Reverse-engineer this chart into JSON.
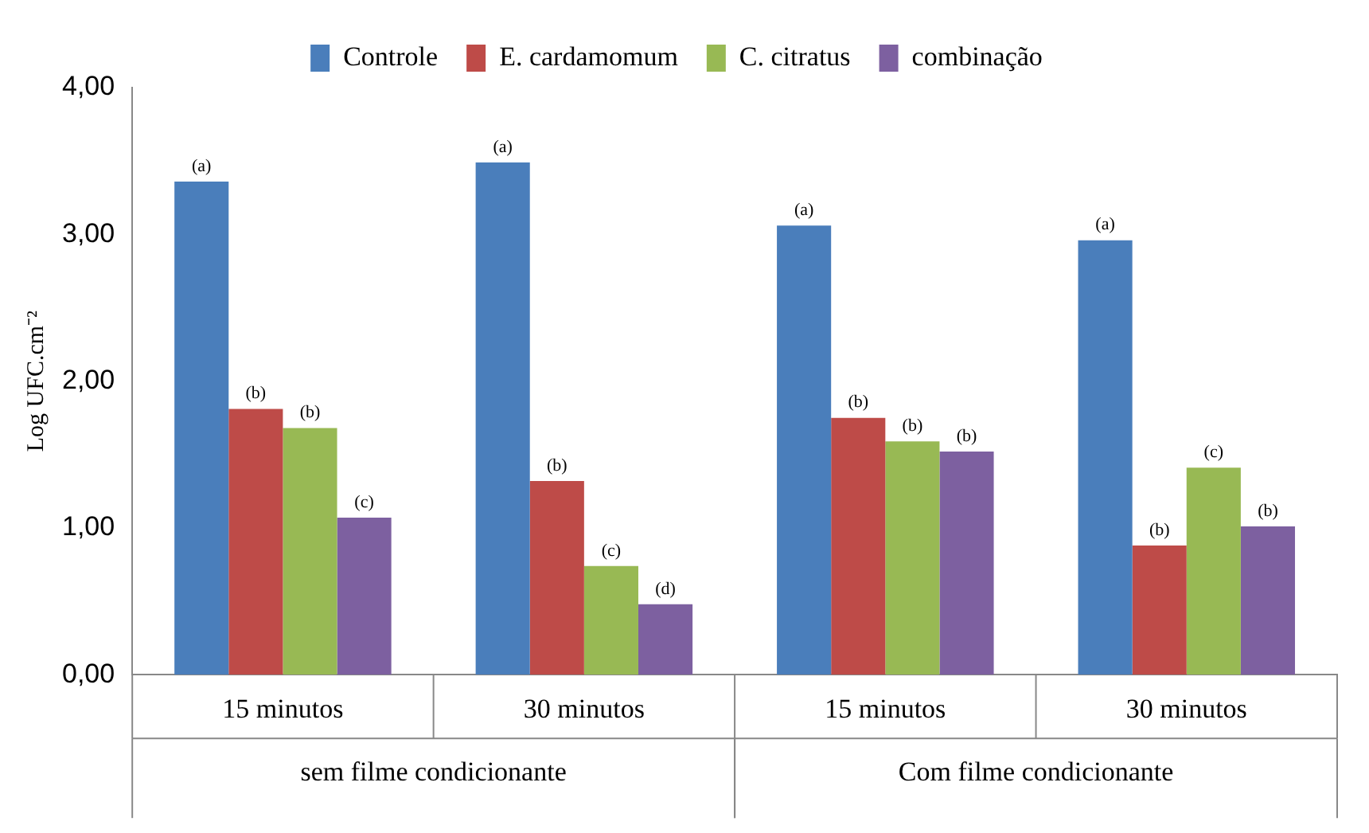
{
  "chart_data": {
    "type": "bar",
    "ylabel": "Log UFC.cm⁻²",
    "categories": [
      "15 minutos",
      "30 minutos",
      "15 minutos",
      "30 minutos"
    ],
    "series": [
      {
        "name": "Controle",
        "color": "#4a7ebb",
        "values": [
          3.36,
          3.49,
          3.06,
          2.96
        ],
        "value_labels": [
          "(a)",
          "(a)",
          "(a)",
          "(a)"
        ]
      },
      {
        "name": "E. cardamomum",
        "color": "#be4b48",
        "values": [
          1.81,
          1.32,
          1.75,
          0.88
        ],
        "value_labels": [
          "(b)",
          "(b)",
          "(b)",
          "(b)"
        ]
      },
      {
        "name": "C. citratus",
        "color": "#98b954",
        "values": [
          1.68,
          0.74,
          1.59,
          1.41
        ],
        "value_labels": [
          "(b)",
          "(c)",
          "(b)",
          "(c)"
        ]
      },
      {
        "name": "combinação",
        "color": "#7d60a0",
        "values": [
          1.07,
          0.48,
          1.52,
          1.01
        ],
        "value_labels": [
          "(c)",
          "(d)",
          "(b)",
          "(b)"
        ]
      }
    ],
    "annotations": [
      "sem filme condicionante",
      "Com filme condicionante"
    ],
    "ylim": [
      0,
      4
    ],
    "yticks": [
      {
        "value": 0,
        "label": "0,00"
      },
      {
        "value": 1,
        "label": "1,00"
      },
      {
        "value": 2,
        "label": "2,00"
      },
      {
        "value": 3,
        "label": "3,00"
      },
      {
        "value": 4,
        "label": "4,00"
      }
    ],
    "grid": false,
    "legend": "top"
  }
}
